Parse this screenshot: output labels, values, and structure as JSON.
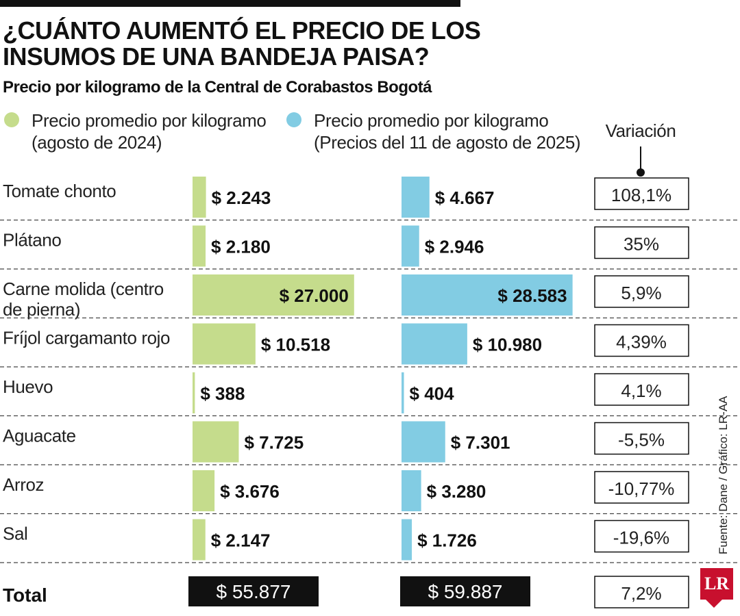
{
  "title": "¿CUÁNTO AUMENTÓ EL PRECIO DE LOS INSUMOS DE UNA BANDEJA PAISA?",
  "subtitle": "Precio por kilogramo de la Central de Corabastos Bogotá",
  "legend": {
    "series_2024": {
      "line1": "Precio promedio por kilogramo",
      "line2": "(agosto de 2024)",
      "color": "#c5dc8c"
    },
    "series_2025": {
      "line1": "Precio promedio por kilogramo",
      "line2": "(Precios del 11 de agosto de 2025)",
      "color": "#82cce3"
    }
  },
  "variation_header": "Variación",
  "source": "Fuente: Dane / Gráfico: LR-AA",
  "logo": "LR",
  "chart_data": {
    "type": "bar",
    "categories": [
      "Tomate chonto",
      "Plátano",
      "Carne molida (centro de pierna)",
      "Fríjol cargamanto rojo",
      "Huevo",
      "Aguacate",
      "Arroz",
      "Sal"
    ],
    "series": [
      {
        "name": "Precio promedio por kilogramo (agosto de 2024)",
        "values": [
          2243,
          2180,
          27000,
          10518,
          388,
          7725,
          3676,
          2147
        ],
        "labels": [
          "$ 2.243",
          "$ 2.180",
          "$ 27.000",
          "$ 10.518",
          "$ 388",
          "$ 7.725",
          "$ 3.676",
          "$ 2.147"
        ],
        "color": "#c5dc8c"
      },
      {
        "name": "Precio promedio por kilogramo (Precios del 11 de agosto de 2025)",
        "values": [
          4667,
          2946,
          28583,
          10980,
          404,
          7301,
          3280,
          1726
        ],
        "labels": [
          "$ 4.667",
          "$ 2.946",
          "$ 28.583",
          "$ 10.980",
          "$ 404",
          "$ 7.301",
          "$ 3.280",
          "$ 1.726"
        ],
        "color": "#82cce3"
      }
    ],
    "variation": [
      "108,1%",
      "35%",
      "5,9%",
      "4,39%",
      "4,1%",
      "-5,5%",
      "-10,77%",
      "-19,6%"
    ],
    "total": {
      "label": "Total",
      "value_2024": "$ 55.877",
      "value_2025": "$ 59.887",
      "variation": "7,2%"
    }
  }
}
